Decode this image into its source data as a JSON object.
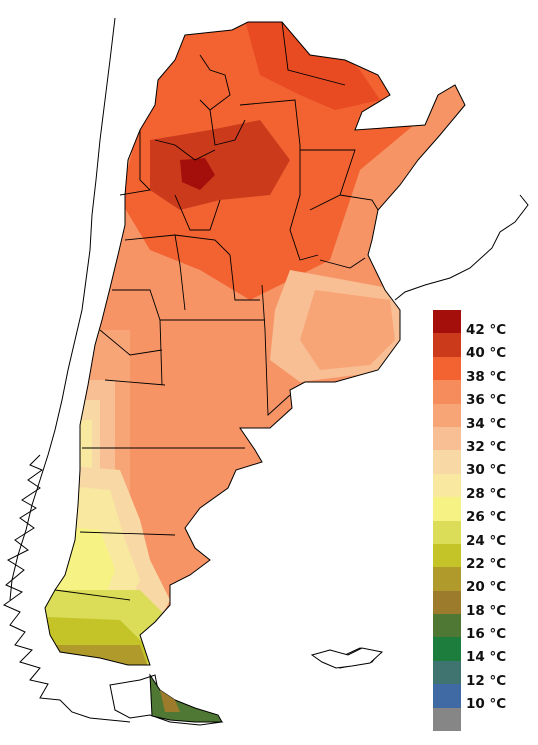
{
  "legend": {
    "items": [
      {
        "label": "42 °C",
        "color": "#a50f0b"
      },
      {
        "label": "40 °C",
        "color": "#cc3a1c"
      },
      {
        "label": "38 °C",
        "color": "#f26331"
      },
      {
        "label": "36 °C",
        "color": "#f68b5c"
      },
      {
        "label": "34 °C",
        "color": "#f7a577"
      },
      {
        "label": "32 °C",
        "color": "#f8be94"
      },
      {
        "label": "30 °C",
        "color": "#f8d9a6"
      },
      {
        "label": "28 °C",
        "color": "#f9e8a0"
      },
      {
        "label": "26 °C",
        "color": "#f6f384"
      },
      {
        "label": "24 °C",
        "color": "#dbdd58"
      },
      {
        "label": "22 °C",
        "color": "#c4c428"
      },
      {
        "label": "20 °C",
        "color": "#b09a2c"
      },
      {
        "label": "18 °C",
        "color": "#9c7b2c"
      },
      {
        "label": "16 °C",
        "color": "#4e7833"
      },
      {
        "label": "14 °C",
        "color": "#1d7d3c"
      },
      {
        "label": "12 °C",
        "color": "#3f7470"
      },
      {
        "label": "10 °C",
        "color": "#3f6aa3"
      },
      {
        "label": "",
        "color": "#868686"
      }
    ]
  },
  "map": {
    "land_color": "#f79466",
    "water_color": "#ffffff",
    "boundary_color": "#000000"
  }
}
